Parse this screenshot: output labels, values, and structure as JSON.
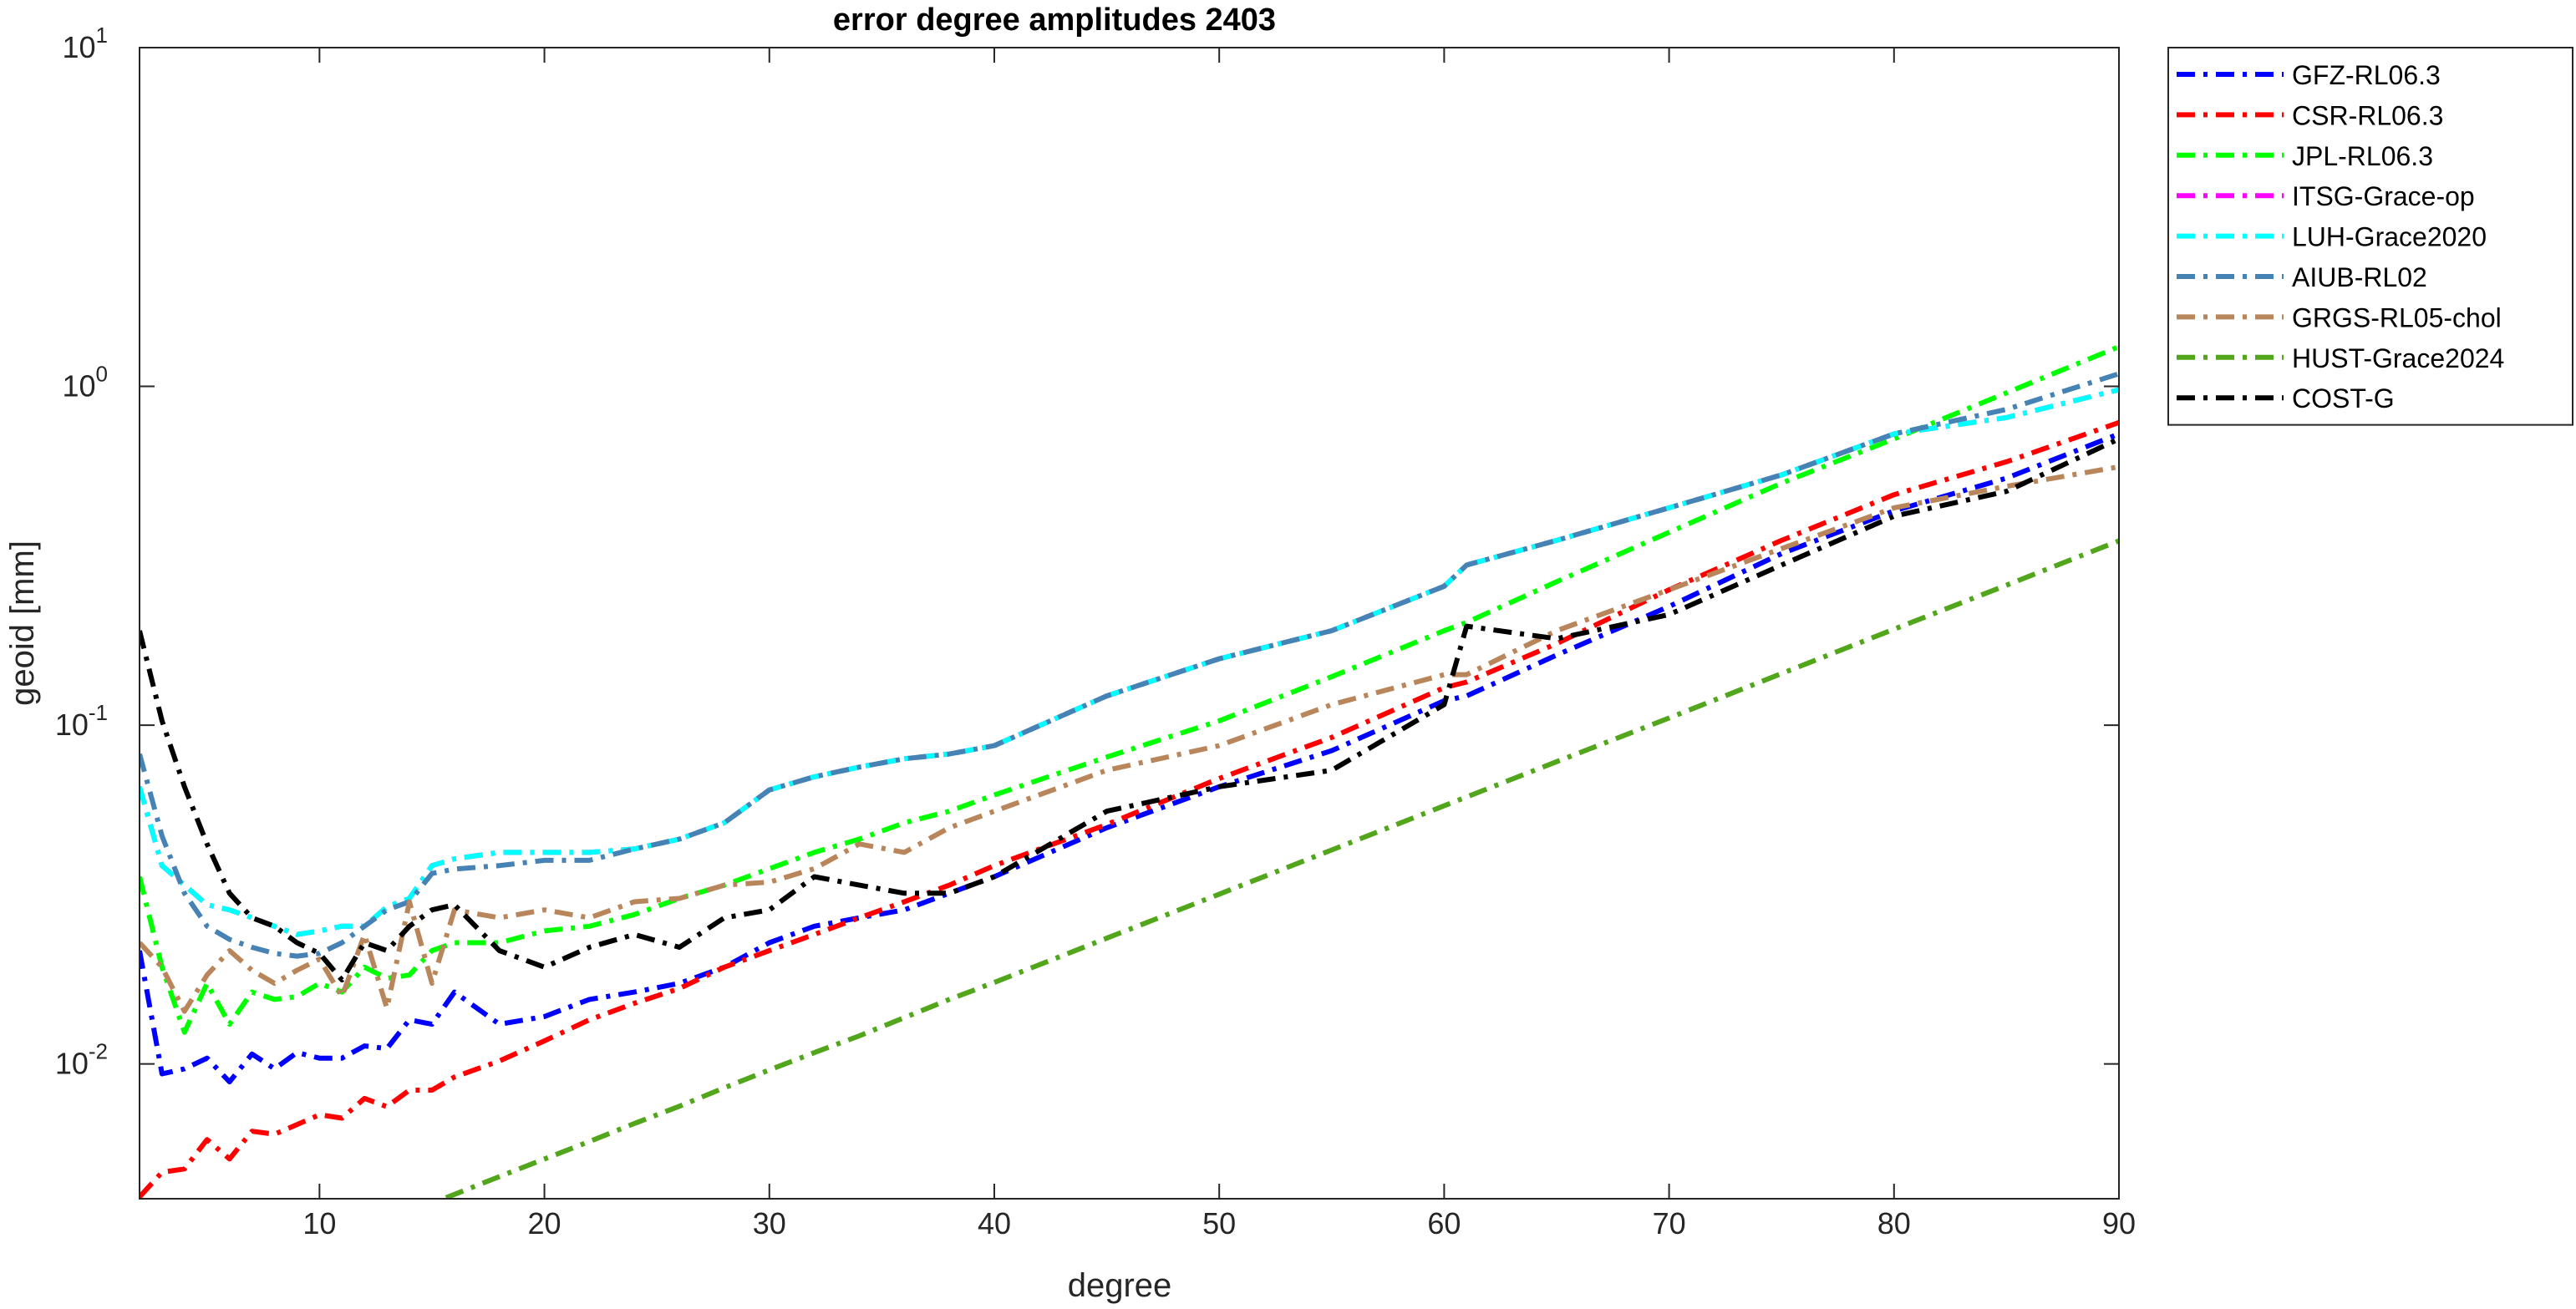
{
  "chart_data": {
    "type": "line",
    "title": "error degree amplitudes 2403",
    "x_label": "degree",
    "y_label": "geoid [mm]",
    "yscale": "log",
    "grid": false,
    "legend": "outside-right",
    "line_style": "dash-dot",
    "xlim": [
      2,
      90
    ],
    "xticks": [
      10,
      20,
      30,
      40,
      50,
      60,
      70,
      80,
      90
    ],
    "ylim": [
      0.004,
      10
    ],
    "yticks": [
      {
        "value": 0.01,
        "label": "10",
        "exponent": "-2"
      },
      {
        "value": 0.1,
        "label": "10",
        "exponent": "-1"
      },
      {
        "value": 1,
        "label": "10",
        "exponent": "0"
      },
      {
        "value": 10,
        "label": "10",
        "exponent": "1"
      }
    ],
    "x": [
      2,
      3,
      4,
      5,
      6,
      7,
      8,
      9,
      10,
      11,
      12,
      13,
      14,
      15,
      16,
      18,
      20,
      22,
      24,
      26,
      28,
      30,
      32,
      34,
      36,
      38,
      40,
      45,
      50,
      55,
      60,
      61,
      65,
      70,
      75,
      80,
      85,
      90
    ],
    "series": [
      {
        "name": "GFZ-RL06.3",
        "color": "#0000ff",
        "values": [
          0.0216,
          0.00935,
          0.00967,
          0.0104,
          0.00885,
          0.0107,
          0.00967,
          0.0108,
          0.0104,
          0.0104,
          0.0113,
          0.0111,
          0.0135,
          0.0131,
          0.0163,
          0.0131,
          0.0138,
          0.0155,
          0.0163,
          0.0173,
          0.0193,
          0.0228,
          0.0255,
          0.027,
          0.0285,
          0.0319,
          0.0357,
          0.0498,
          0.0658,
          0.0841,
          0.118,
          0.122,
          0.161,
          0.224,
          0.321,
          0.429,
          0.536,
          0.724
        ]
      },
      {
        "name": "CSR-RL06.3",
        "color": "#ff0000",
        "values": [
          0.00405,
          0.00479,
          0.0049,
          0.00598,
          0.00524,
          0.00633,
          0.0062,
          0.00662,
          0.00708,
          0.00692,
          0.00791,
          0.00748,
          0.00837,
          0.00837,
          0.00915,
          0.0102,
          0.0117,
          0.0135,
          0.0151,
          0.0167,
          0.0193,
          0.0216,
          0.0241,
          0.027,
          0.0301,
          0.0337,
          0.0385,
          0.0509,
          0.0696,
          0.092,
          0.129,
          0.134,
          0.174,
          0.251,
          0.351,
          0.479,
          0.599,
          0.782
        ]
      },
      {
        "name": "JPL-RL06.3",
        "color": "#00ff00",
        "values": [
          0.0357,
          0.0193,
          0.0124,
          0.0173,
          0.0131,
          0.0163,
          0.0155,
          0.0158,
          0.0173,
          0.0163,
          0.0193,
          0.0179,
          0.0183,
          0.0216,
          0.0228,
          0.0228,
          0.0247,
          0.0255,
          0.0276,
          0.0308,
          0.0337,
          0.0377,
          0.0421,
          0.0461,
          0.0515,
          0.0557,
          0.0622,
          0.0805,
          0.103,
          0.139,
          0.19,
          0.201,
          0.265,
          0.371,
          0.518,
          0.7,
          0.957,
          1.31
        ]
      },
      {
        "name": "ITSG-Grace-op",
        "color": "#ff00ff",
        "values": [
          0.0658,
          0.0385,
          0.0337,
          0.0295,
          0.0285,
          0.027,
          0.0255,
          0.0241,
          0.0247,
          0.0255,
          0.0255,
          0.0291,
          0.0308,
          0.0385,
          0.0403,
          0.0421,
          0.0421,
          0.0421,
          0.0431,
          0.0461,
          0.0515,
          0.0644,
          0.0704,
          0.0752,
          0.0796,
          0.0822,
          0.087,
          0.122,
          0.157,
          0.19,
          0.257,
          0.297,
          0.351,
          0.438,
          0.548,
          0.724,
          0.809,
          0.978
        ]
      },
      {
        "name": "LUH-Grace2020",
        "color": "#00ffff",
        "values": [
          0.0658,
          0.0385,
          0.0337,
          0.0295,
          0.0285,
          0.027,
          0.0255,
          0.0241,
          0.0247,
          0.0255,
          0.0255,
          0.0291,
          0.0308,
          0.0385,
          0.0403,
          0.0421,
          0.0421,
          0.0421,
          0.0431,
          0.0461,
          0.0515,
          0.0644,
          0.0704,
          0.0752,
          0.0796,
          0.0822,
          0.087,
          0.122,
          0.157,
          0.19,
          0.257,
          0.297,
          0.351,
          0.438,
          0.548,
          0.724,
          0.809,
          0.978
        ]
      },
      {
        "name": "AIUB-RL02",
        "color": "#4682b4",
        "values": [
          0.0822,
          0.0471,
          0.0319,
          0.0255,
          0.0233,
          0.0221,
          0.0212,
          0.0208,
          0.0212,
          0.0228,
          0.0255,
          0.0285,
          0.0301,
          0.0365,
          0.0376,
          0.0385,
          0.0399,
          0.0399,
          0.0431,
          0.0461,
          0.0515,
          0.0644,
          0.0704,
          0.0752,
          0.0796,
          0.0822,
          0.087,
          0.122,
          0.157,
          0.19,
          0.257,
          0.297,
          0.351,
          0.438,
          0.548,
          0.724,
          0.855,
          1.09
        ]
      },
      {
        "name": "GRGS-RL05-chol",
        "color": "#b8865a",
        "values": [
          0.0228,
          0.0193,
          0.0143,
          0.0183,
          0.0216,
          0.0189,
          0.0173,
          0.0189,
          0.0204,
          0.0158,
          0.0241,
          0.0146,
          0.0301,
          0.0173,
          0.0285,
          0.027,
          0.0285,
          0.027,
          0.0301,
          0.0308,
          0.0337,
          0.0344,
          0.0377,
          0.0446,
          0.0421,
          0.0498,
          0.0557,
          0.0736,
          0.087,
          0.115,
          0.141,
          0.141,
          0.19,
          0.251,
          0.332,
          0.438,
          0.507,
          0.579
        ]
      },
      {
        "name": "HUST-Grace2024",
        "color": "#52a61c",
        "values": [
          null,
          null,
          null,
          null,
          null,
          null,
          null,
          null,
          null,
          null,
          null,
          null,
          0.00366,
          0.00388,
          0.00412,
          0.00465,
          0.00524,
          0.0059,
          0.00667,
          0.0075,
          0.0085,
          0.0096,
          0.0108,
          0.0121,
          0.0137,
          0.0155,
          0.0174,
          0.0235,
          0.0317,
          0.0428,
          0.0578,
          0.0614,
          0.078,
          0.105,
          0.142,
          0.192,
          0.259,
          0.35
        ]
      },
      {
        "name": "COST-G",
        "color": "#000000",
        "values": [
          0.19,
          0.103,
          0.0658,
          0.0446,
          0.0319,
          0.027,
          0.0255,
          0.0228,
          0.0212,
          0.0177,
          0.0228,
          0.0216,
          0.0255,
          0.0285,
          0.0295,
          0.0216,
          0.0193,
          0.0221,
          0.0241,
          0.0221,
          0.027,
          0.0285,
          0.0357,
          0.0337,
          0.0319,
          0.0319,
          0.0357,
          0.0557,
          0.0658,
          0.0736,
          0.115,
          0.196,
          0.18,
          0.212,
          0.297,
          0.414,
          0.49,
          0.7
        ]
      }
    ]
  }
}
